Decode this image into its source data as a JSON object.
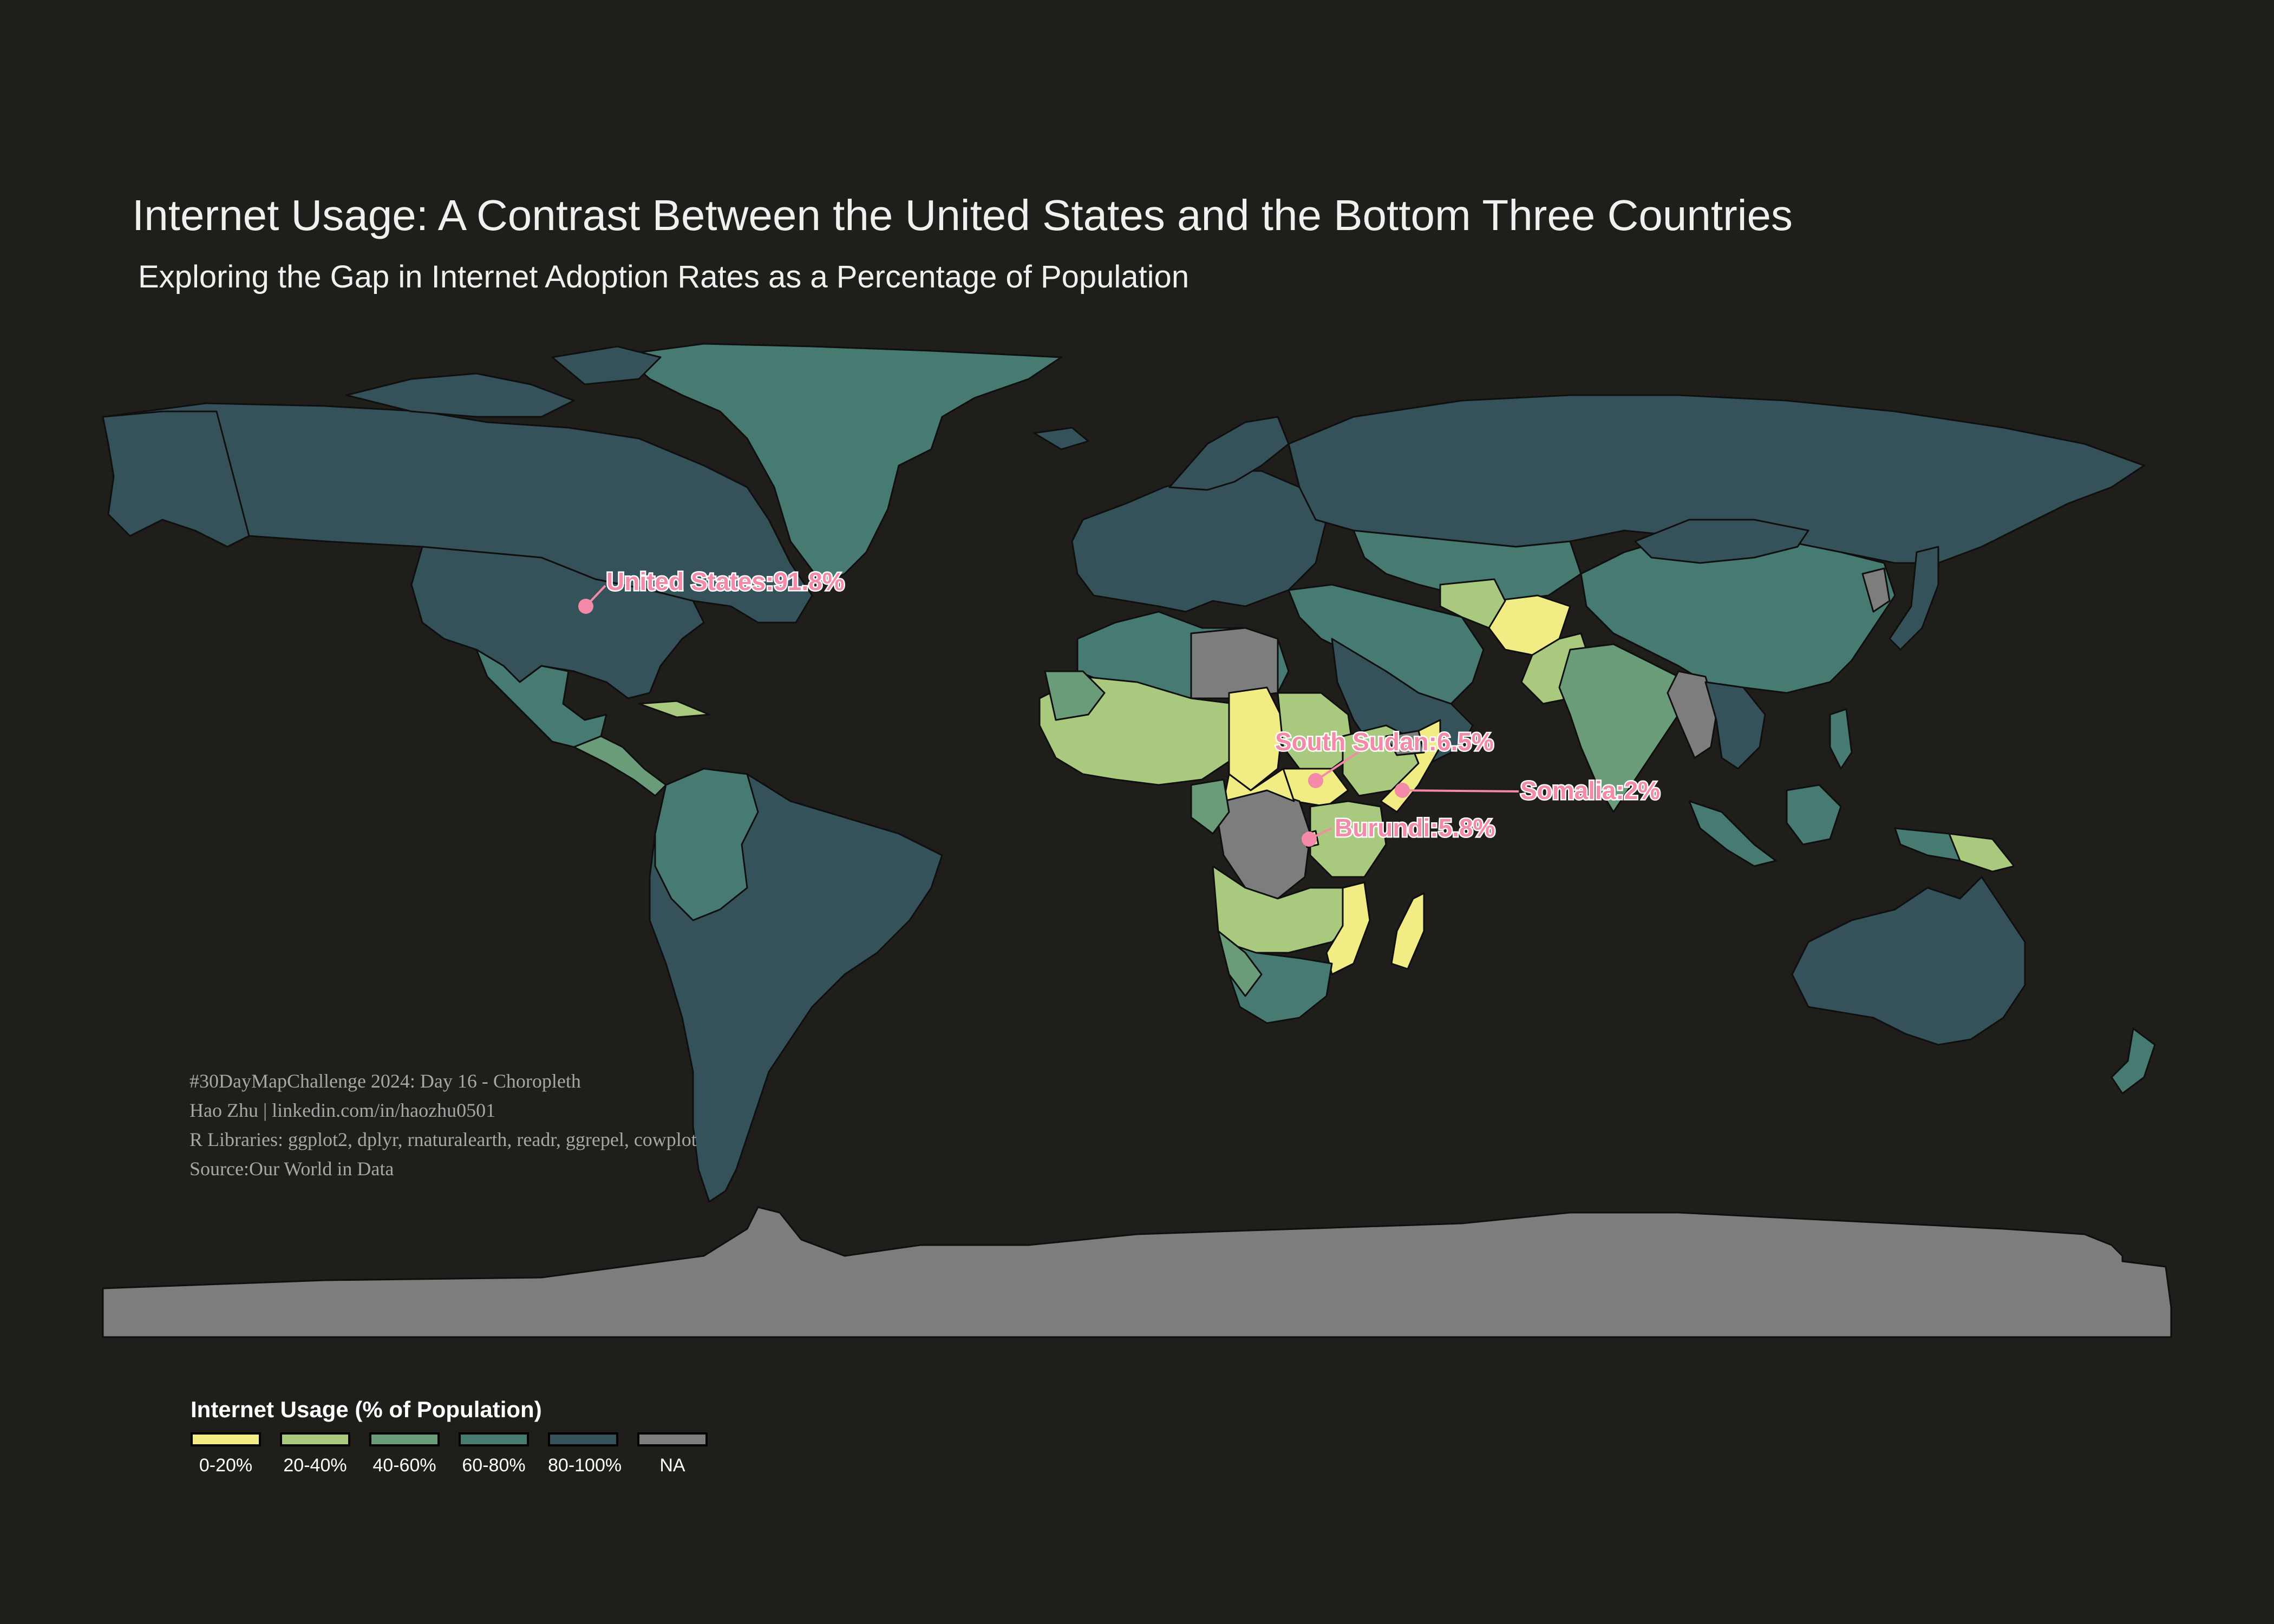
{
  "title": "Internet Usage: A Contrast Between the United States and the Bottom Three Countries",
  "subtitle": "Exploring the Gap in Internet Adoption Rates as a Percentage of Population",
  "credits": [
    "#30DayMapChallenge 2024: Day 16 - Choropleth",
    "Hao Zhu | linkedin.com/in/haozhu0501",
    "R Libraries: ggplot2, dplyr, rnaturalearth, readr, ggrepel, cowplot",
    "Source:Our World in Data"
  ],
  "legend": {
    "title": "Internet Usage (% of Population)",
    "items": [
      {
        "label": "0-20%",
        "color": "#f2ec84"
      },
      {
        "label": "20-40%",
        "color": "#a8c97e"
      },
      {
        "label": "40-60%",
        "color": "#6a9c7a"
      },
      {
        "label": "60-80%",
        "color": "#477a70"
      },
      {
        "label": "80-100%",
        "color": "#35525a"
      },
      {
        "label": "NA",
        "color": "#7d7d7d"
      }
    ]
  },
  "annotations": [
    {
      "label": "United States:91.8%",
      "country": "United States",
      "value": 91.8
    },
    {
      "label": "South Sudan:6.5%",
      "country": "South Sudan",
      "value": 6.5
    },
    {
      "label": "Somalia:2%",
      "country": "Somalia",
      "value": 2
    },
    {
      "label": "Burundi:5.8%",
      "country": "Burundi",
      "value": 5.8
    }
  ],
  "colors": {
    "background": "#1f1e1b",
    "ocean": "#1f1e1b",
    "annotation": "#f28aa8",
    "antarctica": "#7d7d7d"
  }
}
